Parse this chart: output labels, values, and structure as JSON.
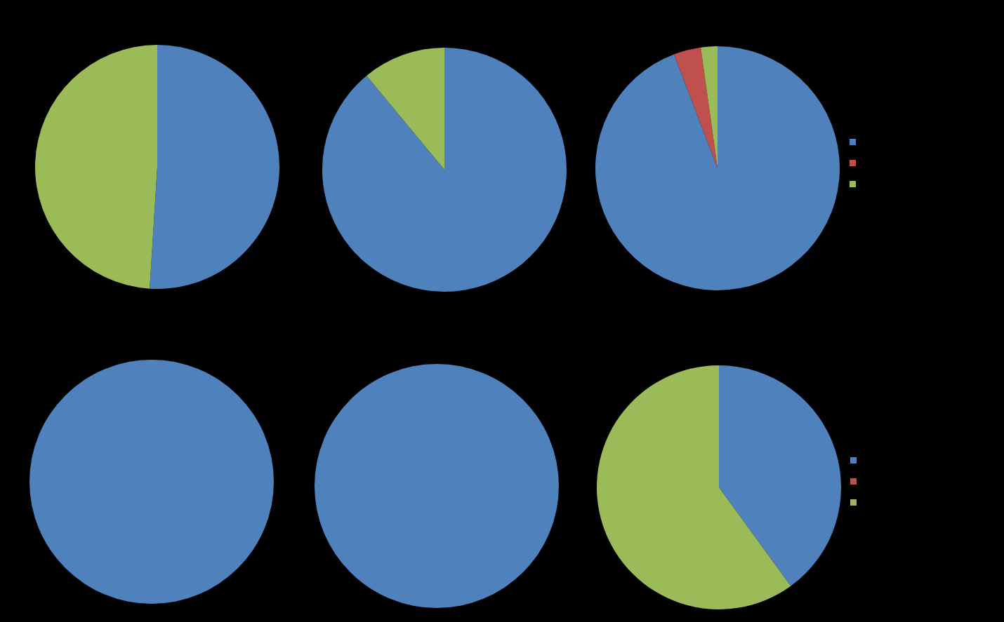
{
  "chart_data": [
    {
      "type": "pie",
      "categories": [
        null,
        null,
        null
      ],
      "values": [
        51,
        0,
        49
      ],
      "colors": [
        "#4f81bd",
        "#c0504d",
        "#9bbb59"
      ],
      "legend": false
    },
    {
      "type": "pie",
      "categories": [
        null,
        null,
        null
      ],
      "values": [
        89,
        0,
        11
      ],
      "colors": [
        "#4f81bd",
        "#c0504d",
        "#9bbb59"
      ],
      "legend": false
    },
    {
      "type": "pie",
      "categories": [
        null,
        null,
        null
      ],
      "values": [
        94.2,
        3.6,
        2.2
      ],
      "colors": [
        "#4f81bd",
        "#c0504d",
        "#9bbb59"
      ],
      "legend": false
    },
    {
      "type": "pie",
      "categories": [
        null,
        null,
        null
      ],
      "values": [
        100,
        0,
        0
      ],
      "colors": [
        "#4f81bd",
        "#c0504d",
        "#9bbb59"
      ],
      "legend": false
    },
    {
      "type": "pie",
      "categories": [
        null,
        null,
        null
      ],
      "values": [
        100,
        0,
        0
      ],
      "colors": [
        "#4f81bd",
        "#c0504d",
        "#9bbb59"
      ],
      "legend": false
    },
    {
      "type": "pie",
      "categories": [
        null,
        null,
        null
      ],
      "values": [
        40,
        0,
        60
      ],
      "colors": [
        "#4f81bd",
        "#c0504d",
        "#9bbb59"
      ],
      "legend": false
    }
  ]
}
